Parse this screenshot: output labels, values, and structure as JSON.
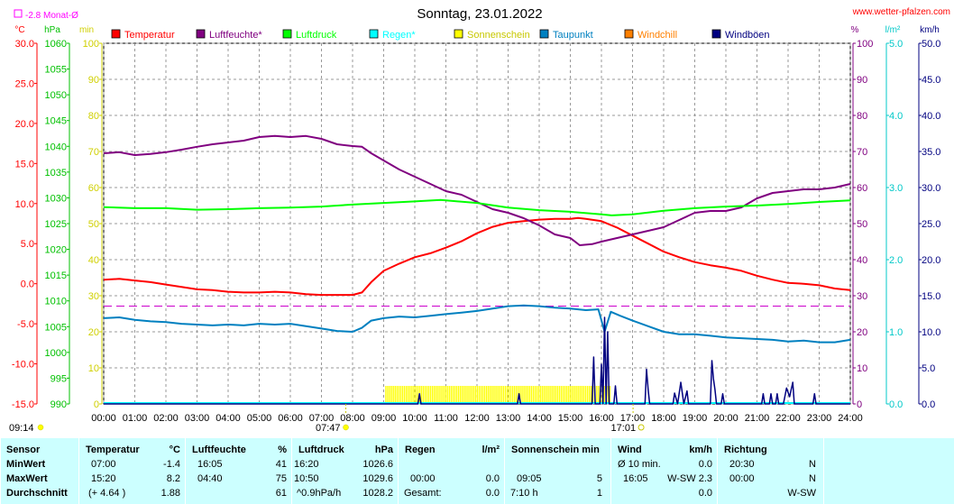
{
  "header": {
    "title": "Sonntag, 23.01.2022",
    "website": "www.wetter-pfalzen.com",
    "month_avg_label": "-2.8 Monat-Ø"
  },
  "axis_units": {
    "temp": "°C",
    "pressure": "hPa",
    "sun": "min",
    "humidity": "%",
    "rain": "l/m²",
    "wind": "km/h"
  },
  "legend": [
    {
      "label": "Temperatur",
      "color": "#ff0000"
    },
    {
      "label": "Luftfeuchte*",
      "color": "#800080"
    },
    {
      "label": "Luftdruck",
      "color": "#00ff00"
    },
    {
      "label": "Regen*",
      "color": "#00ffff"
    },
    {
      "label": "Sonnenschein",
      "color": "#ffff00"
    },
    {
      "label": "Taupunkt",
      "color": "#0080c0"
    },
    {
      "label": "Windchill",
      "color": "#ff8000"
    },
    {
      "label": "Windböen",
      "color": "#000080"
    }
  ],
  "markers": {
    "sunrise": "07:47",
    "sunset": "17:01",
    "month_low_time": "09:14"
  },
  "chart_data": {
    "type": "line",
    "title": "Sonntag, 23.01.2022",
    "x_unit": "hours",
    "x_ticks": [
      "00:00",
      "01:00",
      "02:00",
      "03:00",
      "04:00",
      "05:00",
      "06:00",
      "07:00",
      "08:00",
      "09:00",
      "10:00",
      "11:00",
      "12:00",
      "13:00",
      "14:00",
      "15:00",
      "16:00",
      "17:00",
      "18:00",
      "19:00",
      "20:00",
      "21:00",
      "22:00",
      "23:00",
      "24:00"
    ],
    "axes": {
      "temp": {
        "range": [
          -15,
          30
        ],
        "ticks": [
          "30.0",
          "25.0",
          "20.0",
          "15.0",
          "10.0",
          "5.0",
          "0.0",
          "-5.0",
          "-10.0",
          "-15.0"
        ],
        "color": "#ff0000"
      },
      "pressure": {
        "range": [
          990,
          1060
        ],
        "ticks": [
          "1060",
          "1055",
          "1050",
          "1045",
          "1040",
          "1035",
          "1030",
          "1025",
          "1020",
          "1015",
          "1010",
          "1005",
          "1000",
          "995",
          "990"
        ],
        "color": "#00c000"
      },
      "sun": {
        "range": [
          0,
          100
        ],
        "ticks": [
          "100",
          "90",
          "80",
          "70",
          "60",
          "50",
          "40",
          "30",
          "20",
          "10",
          "0"
        ],
        "color": "#d0d000"
      },
      "humidity": {
        "range": [
          0,
          100
        ],
        "ticks": [
          "100",
          "90",
          "80",
          "70",
          "60",
          "50",
          "40",
          "30",
          "20",
          "10",
          "0"
        ],
        "color": "#800080"
      },
      "rain": {
        "range": [
          0,
          5
        ],
        "ticks": [
          "5.0",
          "4.0",
          "3.0",
          "2.0",
          "1.0",
          "0.0"
        ],
        "color": "#00c8c8"
      },
      "wind": {
        "range": [
          0,
          50
        ],
        "ticks": [
          "50.0",
          "45.0",
          "40.0",
          "35.0",
          "30.0",
          "25.0",
          "20.0",
          "15.0",
          "10.0",
          "5.0",
          "0.0"
        ],
        "color": "#000080"
      }
    },
    "month_avg_temp": -2.8,
    "series": [
      {
        "name": "Temperatur",
        "axis": "temp",
        "color": "#ff0000",
        "points": [
          [
            0,
            0.5
          ],
          [
            0.5,
            0.6
          ],
          [
            1,
            0.4
          ],
          [
            1.5,
            0.2
          ],
          [
            2,
            -0.1
          ],
          [
            2.5,
            -0.4
          ],
          [
            3,
            -0.7
          ],
          [
            3.5,
            -0.8
          ],
          [
            4,
            -1.0
          ],
          [
            4.5,
            -1.1
          ],
          [
            5,
            -1.1
          ],
          [
            5.5,
            -1.0
          ],
          [
            6,
            -1.1
          ],
          [
            6.5,
            -1.3
          ],
          [
            7,
            -1.4
          ],
          [
            7.5,
            -1.4
          ],
          [
            8,
            -1.4
          ],
          [
            8.3,
            -1.1
          ],
          [
            8.6,
            0.2
          ],
          [
            9,
            1.6
          ],
          [
            9.5,
            2.5
          ],
          [
            10,
            3.3
          ],
          [
            10.5,
            3.8
          ],
          [
            11,
            4.5
          ],
          [
            11.5,
            5.3
          ],
          [
            12,
            6.3
          ],
          [
            12.5,
            7.1
          ],
          [
            13,
            7.6
          ],
          [
            13.5,
            7.8
          ],
          [
            14,
            8.0
          ],
          [
            14.5,
            8.1
          ],
          [
            15,
            8.1
          ],
          [
            15.25,
            8.2
          ],
          [
            15.5,
            8.1
          ],
          [
            16,
            7.8
          ],
          [
            16.5,
            7.0
          ],
          [
            17,
            6.0
          ],
          [
            17.5,
            5.0
          ],
          [
            18,
            4.0
          ],
          [
            18.5,
            3.3
          ],
          [
            19,
            2.7
          ],
          [
            19.5,
            2.3
          ],
          [
            20,
            2.0
          ],
          [
            20.5,
            1.6
          ],
          [
            21,
            1.0
          ],
          [
            21.5,
            0.5
          ],
          [
            22,
            0.1
          ],
          [
            22.5,
            0.0
          ],
          [
            23,
            -0.2
          ],
          [
            23.5,
            -0.6
          ],
          [
            24,
            -0.8
          ]
        ]
      },
      {
        "name": "Luftfeuchte*",
        "axis": "humidity",
        "color": "#800080",
        "points": [
          [
            0,
            69.5
          ],
          [
            0.5,
            69.8
          ],
          [
            1,
            69.0
          ],
          [
            1.5,
            69.3
          ],
          [
            2,
            69.8
          ],
          [
            2.5,
            70.5
          ],
          [
            3,
            71.3
          ],
          [
            3.5,
            72.0
          ],
          [
            4,
            72.5
          ],
          [
            4.5,
            73.0
          ],
          [
            5,
            74.0
          ],
          [
            5.5,
            74.3
          ],
          [
            6,
            74.0
          ],
          [
            6.5,
            74.3
          ],
          [
            7,
            73.5
          ],
          [
            7.5,
            72.0
          ],
          [
            8,
            71.5
          ],
          [
            8.3,
            71.3
          ],
          [
            8.6,
            69.5
          ],
          [
            9,
            67.5
          ],
          [
            9.5,
            65.0
          ],
          [
            10,
            63.0
          ],
          [
            10.5,
            61.0
          ],
          [
            11,
            59.0
          ],
          [
            11.5,
            58.0
          ],
          [
            12,
            56.0
          ],
          [
            12.5,
            54.0
          ],
          [
            13,
            53.0
          ],
          [
            13.5,
            51.5
          ],
          [
            14,
            49.5
          ],
          [
            14.5,
            47.0
          ],
          [
            15,
            46.0
          ],
          [
            15.3,
            44.0
          ],
          [
            15.7,
            44.3
          ],
          [
            16,
            45.0
          ],
          [
            16.5,
            46.0
          ],
          [
            17,
            47.0
          ],
          [
            17.5,
            48.0
          ],
          [
            18,
            49.0
          ],
          [
            18.5,
            51.0
          ],
          [
            19,
            53.0
          ],
          [
            19.5,
            53.5
          ],
          [
            20,
            53.5
          ],
          [
            20.5,
            54.5
          ],
          [
            21,
            57.0
          ],
          [
            21.5,
            58.5
          ],
          [
            22,
            59.0
          ],
          [
            22.5,
            59.5
          ],
          [
            23,
            59.5
          ],
          [
            23.5,
            60.0
          ],
          [
            24,
            61.0
          ]
        ]
      },
      {
        "name": "Luftdruck",
        "axis": "pressure",
        "color": "#00ff00",
        "points": [
          [
            0,
            1028.2
          ],
          [
            1,
            1028.0
          ],
          [
            2,
            1028.0
          ],
          [
            3,
            1027.7
          ],
          [
            4,
            1027.8
          ],
          [
            5,
            1028.0
          ],
          [
            6,
            1028.1
          ],
          [
            7,
            1028.3
          ],
          [
            8,
            1028.7
          ],
          [
            9,
            1029.0
          ],
          [
            10,
            1029.3
          ],
          [
            10.83,
            1029.6
          ],
          [
            11,
            1029.5
          ],
          [
            12,
            1029.0
          ],
          [
            13,
            1028.1
          ],
          [
            14,
            1027.6
          ],
          [
            15,
            1027.3
          ],
          [
            16,
            1026.8
          ],
          [
            16.33,
            1026.6
          ],
          [
            17,
            1026.8
          ],
          [
            18,
            1027.5
          ],
          [
            19,
            1028.0
          ],
          [
            20,
            1028.3
          ],
          [
            21,
            1028.5
          ],
          [
            22,
            1028.8
          ],
          [
            23,
            1029.2
          ],
          [
            24,
            1029.5
          ]
        ]
      },
      {
        "name": "Taupunkt",
        "axis": "temp",
        "color": "#0080c0",
        "points": [
          [
            0,
            -4.3
          ],
          [
            0.5,
            -4.2
          ],
          [
            1,
            -4.5
          ],
          [
            1.5,
            -4.7
          ],
          [
            2,
            -4.8
          ],
          [
            2.5,
            -5.0
          ],
          [
            3,
            -5.1
          ],
          [
            3.5,
            -5.2
          ],
          [
            4,
            -5.1
          ],
          [
            4.5,
            -5.2
          ],
          [
            5,
            -5.0
          ],
          [
            5.5,
            -5.1
          ],
          [
            6,
            -5.0
          ],
          [
            6.5,
            -5.3
          ],
          [
            7,
            -5.6
          ],
          [
            7.5,
            -5.9
          ],
          [
            8,
            -6.0
          ],
          [
            8.3,
            -5.5
          ],
          [
            8.6,
            -4.6
          ],
          [
            9,
            -4.3
          ],
          [
            9.5,
            -4.1
          ],
          [
            10,
            -4.2
          ],
          [
            10.5,
            -4.0
          ],
          [
            11,
            -3.8
          ],
          [
            11.5,
            -3.6
          ],
          [
            12,
            -3.4
          ],
          [
            12.5,
            -3.1
          ],
          [
            13,
            -2.8
          ],
          [
            13.5,
            -2.7
          ],
          [
            14,
            -2.8
          ],
          [
            14.5,
            -3.0
          ],
          [
            15,
            -3.1
          ],
          [
            15.5,
            -3.3
          ],
          [
            15.9,
            -3.2
          ],
          [
            16.1,
            -6.0
          ],
          [
            16.3,
            -3.5
          ],
          [
            16.6,
            -4.0
          ],
          [
            17,
            -4.6
          ],
          [
            17.5,
            -5.3
          ],
          [
            18,
            -6.0
          ],
          [
            18.5,
            -6.3
          ],
          [
            19,
            -6.3
          ],
          [
            19.5,
            -6.5
          ],
          [
            20,
            -6.7
          ],
          [
            20.5,
            -6.8
          ],
          [
            21,
            -6.9
          ],
          [
            21.5,
            -7.0
          ],
          [
            22,
            -7.2
          ],
          [
            22.5,
            -7.1
          ],
          [
            23,
            -7.3
          ],
          [
            23.5,
            -7.3
          ],
          [
            24,
            -7.0
          ]
        ]
      },
      {
        "name": "Windböen",
        "axis": "wind",
        "color": "#000080",
        "points": [
          [
            0,
            0
          ],
          [
            10.1,
            0
          ],
          [
            10.15,
            1.4
          ],
          [
            10.2,
            0
          ],
          [
            13.3,
            0
          ],
          [
            13.35,
            1.4
          ],
          [
            13.4,
            0
          ],
          [
            15.7,
            0
          ],
          [
            15.75,
            6.5
          ],
          [
            15.8,
            0
          ],
          [
            15.95,
            0
          ],
          [
            16.0,
            5.5
          ],
          [
            16.05,
            0
          ],
          [
            16.1,
            12.0
          ],
          [
            16.15,
            0
          ],
          [
            16.2,
            10.0
          ],
          [
            16.25,
            0
          ],
          [
            16.4,
            0
          ],
          [
            16.45,
            2.5
          ],
          [
            16.5,
            0
          ],
          [
            17.4,
            0
          ],
          [
            17.45,
            4.8
          ],
          [
            17.5,
            2.0
          ],
          [
            17.55,
            0
          ],
          [
            18.3,
            0
          ],
          [
            18.35,
            1.5
          ],
          [
            18.45,
            0
          ],
          [
            18.55,
            3.0
          ],
          [
            18.65,
            0
          ],
          [
            18.75,
            1.8
          ],
          [
            18.8,
            0
          ],
          [
            19.5,
            0
          ],
          [
            19.55,
            6.0
          ],
          [
            19.6,
            3.5
          ],
          [
            19.65,
            2.0
          ],
          [
            19.7,
            0
          ],
          [
            19.85,
            0
          ],
          [
            19.9,
            1.4
          ],
          [
            19.95,
            0
          ],
          [
            21.15,
            0
          ],
          [
            21.2,
            1.4
          ],
          [
            21.25,
            0
          ],
          [
            21.4,
            0
          ],
          [
            21.45,
            1.4
          ],
          [
            21.5,
            0
          ],
          [
            21.6,
            0
          ],
          [
            21.65,
            1.4
          ],
          [
            21.7,
            0
          ],
          [
            21.85,
            0
          ],
          [
            21.95,
            2.2
          ],
          [
            22.05,
            1.0
          ],
          [
            22.15,
            3.0
          ],
          [
            22.2,
            0
          ],
          [
            22.8,
            0
          ],
          [
            22.85,
            1.4
          ],
          [
            22.9,
            0
          ],
          [
            24,
            0
          ]
        ]
      }
    ],
    "rain_series": {
      "name": "Regen*",
      "axis": "rain",
      "total": 0.0
    },
    "sunshine_blocks": {
      "name": "Sonnenschein",
      "axis": "sun",
      "start": 9.05,
      "end": 16.28,
      "value": 5
    }
  },
  "stats": {
    "sensor": {
      "header": "Sensor",
      "rows": [
        "MinWert",
        "MaxWert",
        "Durchschnitt"
      ]
    },
    "temperatur": {
      "header": "Temperatur",
      "unit": "°C",
      "times": [
        "07:00",
        "15:20",
        "(+ 4.64 )"
      ],
      "values": [
        "-1.4",
        "8.2",
        "1.88"
      ]
    },
    "luftfeuchte": {
      "header": "Luftfeuchte",
      "unit": "%",
      "times": [
        "16:05",
        "04:40",
        ""
      ],
      "values": [
        "41",
        "75",
        "61"
      ]
    },
    "luftdruck": {
      "header": "Luftdruck",
      "unit": "hPa",
      "times": [
        "16:20",
        "10:50",
        "^0.9hPa/h"
      ],
      "values": [
        "1026.6",
        "1029.6",
        "1028.2"
      ]
    },
    "regen": {
      "header": "Regen",
      "unit": "l/m²",
      "times": [
        "",
        "00:00",
        "Gesamt:"
      ],
      "values": [
        "",
        "0.0",
        "0.0"
      ]
    },
    "sonne": {
      "header": "Sonnenschein min",
      "times": [
        "",
        "09:05",
        "7:10 h"
      ],
      "values": [
        "",
        "5",
        "1"
      ]
    },
    "wind": {
      "header": "Wind",
      "unit": "km/h",
      "times": [
        "Ø 10 min.",
        "16:05",
        ""
      ],
      "values": [
        "0.0",
        "W-SW 2.3",
        "0.0"
      ]
    },
    "richtung": {
      "header": "Richtung",
      "times": [
        "20:30",
        "00:00",
        ""
      ],
      "values": [
        "N",
        "N",
        "W-SW"
      ]
    }
  }
}
